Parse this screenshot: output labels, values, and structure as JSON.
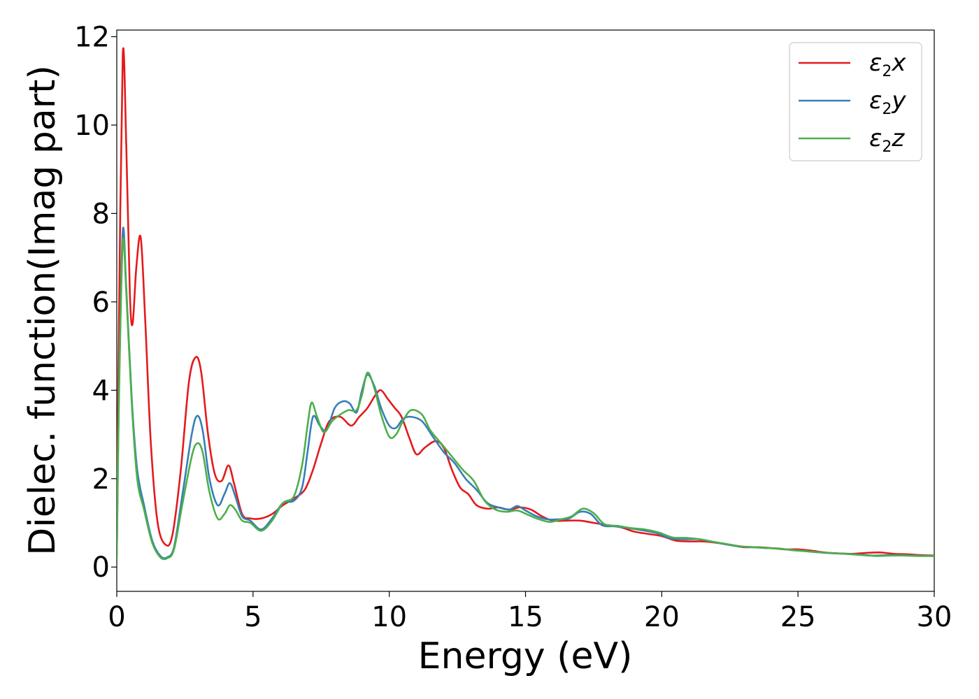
{
  "chart_data": {
    "type": "line",
    "title": "",
    "xlabel": "Energy (eV)",
    "ylabel": "Dielec. function(Imag part)",
    "xlim": [
      0,
      30
    ],
    "ylim": [
      -0.55,
      12.15
    ],
    "xticks": [
      0,
      5,
      10,
      15,
      20,
      25,
      30
    ],
    "yticks": [
      0,
      2,
      4,
      6,
      8,
      10,
      12
    ],
    "grid": false,
    "legend_position": "top-right",
    "series": [
      {
        "name": "ε2x",
        "legend": {
          "base": "ε",
          "sub": "2",
          "tail": "x"
        },
        "color": "#e41a1c",
        "points": [
          [
            0,
            0.3
          ],
          [
            0.08,
            5.5
          ],
          [
            0.22,
            11.6
          ],
          [
            0.35,
            9.5
          ],
          [
            0.48,
            6.2
          ],
          [
            0.58,
            5.5
          ],
          [
            0.72,
            6.8
          ],
          [
            0.88,
            7.45
          ],
          [
            1.05,
            5.5
          ],
          [
            1.25,
            2.8
          ],
          [
            1.5,
            1.0
          ],
          [
            1.8,
            0.5
          ],
          [
            2.05,
            0.75
          ],
          [
            2.35,
            2.2
          ],
          [
            2.65,
            4.2
          ],
          [
            2.9,
            4.75
          ],
          [
            3.1,
            4.4
          ],
          [
            3.35,
            3.0
          ],
          [
            3.6,
            2.1
          ],
          [
            3.85,
            1.95
          ],
          [
            4.1,
            2.3
          ],
          [
            4.3,
            1.9
          ],
          [
            4.6,
            1.2
          ],
          [
            4.9,
            1.1
          ],
          [
            5.3,
            1.1
          ],
          [
            5.7,
            1.2
          ],
          [
            6.1,
            1.4
          ],
          [
            6.5,
            1.55
          ],
          [
            6.9,
            1.75
          ],
          [
            7.2,
            2.2
          ],
          [
            7.5,
            2.8
          ],
          [
            7.8,
            3.3
          ],
          [
            8.2,
            3.4
          ],
          [
            8.6,
            3.2
          ],
          [
            8.9,
            3.4
          ],
          [
            9.2,
            3.6
          ],
          [
            9.5,
            3.9
          ],
          [
            9.7,
            4.0
          ],
          [
            9.95,
            3.8
          ],
          [
            10.2,
            3.6
          ],
          [
            10.45,
            3.4
          ],
          [
            10.75,
            2.9
          ],
          [
            11.0,
            2.55
          ],
          [
            11.3,
            2.7
          ],
          [
            11.7,
            2.85
          ],
          [
            12.0,
            2.7
          ],
          [
            12.3,
            2.2
          ],
          [
            12.6,
            1.8
          ],
          [
            12.9,
            1.65
          ],
          [
            13.2,
            1.4
          ],
          [
            13.6,
            1.32
          ],
          [
            14.0,
            1.35
          ],
          [
            14.4,
            1.3
          ],
          [
            14.8,
            1.35
          ],
          [
            15.2,
            1.3
          ],
          [
            15.6,
            1.15
          ],
          [
            16.0,
            1.05
          ],
          [
            16.5,
            1.05
          ],
          [
            17.0,
            1.05
          ],
          [
            17.5,
            1.0
          ],
          [
            18.0,
            0.95
          ],
          [
            18.5,
            0.9
          ],
          [
            19.0,
            0.8
          ],
          [
            19.5,
            0.75
          ],
          [
            20.0,
            0.7
          ],
          [
            20.5,
            0.6
          ],
          [
            21.0,
            0.58
          ],
          [
            21.5,
            0.58
          ],
          [
            22.0,
            0.55
          ],
          [
            22.5,
            0.5
          ],
          [
            23.0,
            0.45
          ],
          [
            23.5,
            0.45
          ],
          [
            24.0,
            0.43
          ],
          [
            24.5,
            0.4
          ],
          [
            25.0,
            0.4
          ],
          [
            25.5,
            0.37
          ],
          [
            26.0,
            0.33
          ],
          [
            26.5,
            0.31
          ],
          [
            27.0,
            0.3
          ],
          [
            27.5,
            0.32
          ],
          [
            28.0,
            0.33
          ],
          [
            28.5,
            0.3
          ],
          [
            29.0,
            0.29
          ],
          [
            29.5,
            0.27
          ],
          [
            30.0,
            0.26
          ]
        ]
      },
      {
        "name": "ε2y",
        "legend": {
          "base": "ε",
          "sub": "2",
          "tail": "y"
        },
        "color": "#377eb8",
        "points": [
          [
            0,
            0.2
          ],
          [
            0.08,
            4.0
          ],
          [
            0.22,
            7.6
          ],
          [
            0.35,
            6.3
          ],
          [
            0.55,
            3.8
          ],
          [
            0.75,
            2.2
          ],
          [
            1.0,
            1.4
          ],
          [
            1.3,
            0.6
          ],
          [
            1.6,
            0.25
          ],
          [
            1.85,
            0.22
          ],
          [
            2.1,
            0.45
          ],
          [
            2.4,
            1.6
          ],
          [
            2.75,
            3.0
          ],
          [
            2.95,
            3.42
          ],
          [
            3.15,
            3.1
          ],
          [
            3.4,
            2.0
          ],
          [
            3.7,
            1.4
          ],
          [
            3.95,
            1.65
          ],
          [
            4.15,
            1.9
          ],
          [
            4.35,
            1.6
          ],
          [
            4.6,
            1.15
          ],
          [
            4.9,
            1.05
          ],
          [
            5.3,
            0.85
          ],
          [
            5.7,
            1.1
          ],
          [
            6.1,
            1.45
          ],
          [
            6.5,
            1.5
          ],
          [
            6.8,
            1.8
          ],
          [
            7.0,
            2.6
          ],
          [
            7.2,
            3.4
          ],
          [
            7.45,
            3.2
          ],
          [
            7.7,
            3.1
          ],
          [
            8.0,
            3.6
          ],
          [
            8.3,
            3.75
          ],
          [
            8.55,
            3.7
          ],
          [
            8.8,
            3.5
          ],
          [
            9.0,
            4.0
          ],
          [
            9.2,
            4.35
          ],
          [
            9.45,
            4.1
          ],
          [
            9.7,
            3.6
          ],
          [
            10.0,
            3.2
          ],
          [
            10.25,
            3.15
          ],
          [
            10.5,
            3.35
          ],
          [
            10.8,
            3.4
          ],
          [
            11.2,
            3.3
          ],
          [
            11.6,
            2.95
          ],
          [
            12.0,
            2.6
          ],
          [
            12.4,
            2.35
          ],
          [
            12.8,
            2.0
          ],
          [
            13.2,
            1.75
          ],
          [
            13.6,
            1.45
          ],
          [
            14.0,
            1.35
          ],
          [
            14.4,
            1.3
          ],
          [
            14.7,
            1.38
          ],
          [
            15.0,
            1.28
          ],
          [
            15.4,
            1.15
          ],
          [
            15.8,
            1.08
          ],
          [
            16.2,
            1.08
          ],
          [
            16.6,
            1.1
          ],
          [
            17.0,
            1.25
          ],
          [
            17.4,
            1.2
          ],
          [
            17.8,
            0.95
          ],
          [
            18.3,
            0.92
          ],
          [
            18.8,
            0.88
          ],
          [
            19.3,
            0.83
          ],
          [
            19.8,
            0.77
          ],
          [
            20.3,
            0.65
          ],
          [
            20.8,
            0.63
          ],
          [
            21.3,
            0.63
          ],
          [
            21.8,
            0.58
          ],
          [
            22.3,
            0.52
          ],
          [
            22.8,
            0.47
          ],
          [
            23.3,
            0.45
          ],
          [
            23.8,
            0.43
          ],
          [
            24.3,
            0.42
          ],
          [
            24.8,
            0.38
          ],
          [
            25.3,
            0.36
          ],
          [
            25.8,
            0.33
          ],
          [
            26.3,
            0.31
          ],
          [
            26.8,
            0.3
          ],
          [
            27.3,
            0.28
          ],
          [
            27.8,
            0.26
          ],
          [
            28.3,
            0.27
          ],
          [
            28.8,
            0.27
          ],
          [
            29.3,
            0.26
          ],
          [
            30.0,
            0.25
          ]
        ]
      },
      {
        "name": "ε2z",
        "legend": {
          "base": "ε",
          "sub": "2",
          "tail": "z"
        },
        "color": "#4daf4a",
        "points": [
          [
            0,
            0.2
          ],
          [
            0.08,
            3.8
          ],
          [
            0.22,
            7.35
          ],
          [
            0.35,
            6.2
          ],
          [
            0.55,
            3.7
          ],
          [
            0.75,
            2.0
          ],
          [
            1.0,
            1.3
          ],
          [
            1.3,
            0.55
          ],
          [
            1.6,
            0.22
          ],
          [
            1.85,
            0.2
          ],
          [
            2.1,
            0.4
          ],
          [
            2.4,
            1.4
          ],
          [
            2.75,
            2.5
          ],
          [
            2.95,
            2.8
          ],
          [
            3.15,
            2.6
          ],
          [
            3.4,
            1.7
          ],
          [
            3.7,
            1.1
          ],
          [
            3.95,
            1.2
          ],
          [
            4.15,
            1.4
          ],
          [
            4.35,
            1.3
          ],
          [
            4.6,
            1.05
          ],
          [
            4.9,
            1.0
          ],
          [
            5.3,
            0.82
          ],
          [
            5.7,
            1.05
          ],
          [
            6.1,
            1.45
          ],
          [
            6.5,
            1.6
          ],
          [
            6.8,
            2.3
          ],
          [
            7.0,
            3.2
          ],
          [
            7.15,
            3.72
          ],
          [
            7.35,
            3.4
          ],
          [
            7.6,
            3.05
          ],
          [
            7.9,
            3.3
          ],
          [
            8.2,
            3.45
          ],
          [
            8.5,
            3.55
          ],
          [
            8.8,
            3.55
          ],
          [
            9.0,
            3.9
          ],
          [
            9.2,
            4.4
          ],
          [
            9.45,
            4.05
          ],
          [
            9.7,
            3.45
          ],
          [
            10.0,
            2.95
          ],
          [
            10.25,
            3.0
          ],
          [
            10.5,
            3.3
          ],
          [
            10.8,
            3.55
          ],
          [
            11.2,
            3.45
          ],
          [
            11.5,
            3.1
          ],
          [
            11.9,
            2.8
          ],
          [
            12.3,
            2.5
          ],
          [
            12.7,
            2.2
          ],
          [
            13.1,
            1.95
          ],
          [
            13.5,
            1.5
          ],
          [
            13.9,
            1.3
          ],
          [
            14.3,
            1.25
          ],
          [
            14.7,
            1.28
          ],
          [
            15.1,
            1.18
          ],
          [
            15.5,
            1.08
          ],
          [
            15.9,
            1.02
          ],
          [
            16.3,
            1.08
          ],
          [
            16.7,
            1.15
          ],
          [
            17.1,
            1.32
          ],
          [
            17.5,
            1.22
          ],
          [
            17.9,
            0.97
          ],
          [
            18.4,
            0.93
          ],
          [
            18.9,
            0.88
          ],
          [
            19.4,
            0.85
          ],
          [
            19.9,
            0.78
          ],
          [
            20.4,
            0.67
          ],
          [
            20.9,
            0.66
          ],
          [
            21.4,
            0.63
          ],
          [
            21.9,
            0.57
          ],
          [
            22.4,
            0.52
          ],
          [
            22.9,
            0.47
          ],
          [
            23.4,
            0.45
          ],
          [
            23.9,
            0.43
          ],
          [
            24.4,
            0.41
          ],
          [
            24.9,
            0.38
          ],
          [
            25.4,
            0.35
          ],
          [
            25.9,
            0.33
          ],
          [
            26.4,
            0.31
          ],
          [
            26.9,
            0.29
          ],
          [
            27.4,
            0.27
          ],
          [
            27.9,
            0.25
          ],
          [
            28.4,
            0.26
          ],
          [
            28.9,
            0.26
          ],
          [
            29.4,
            0.25
          ],
          [
            30.0,
            0.25
          ]
        ]
      }
    ]
  }
}
